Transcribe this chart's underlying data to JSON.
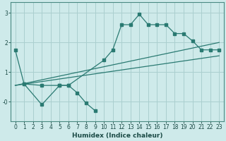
{
  "xlabel": "Humidex (Indice chaleur)",
  "bg_color": "#ceeaea",
  "grid_color": "#aacfcf",
  "line_color": "#2a7a72",
  "xlim": [
    -0.5,
    23.5
  ],
  "ylim": [
    -0.65,
    3.35
  ],
  "xticks": [
    0,
    1,
    2,
    3,
    4,
    5,
    6,
    7,
    8,
    9,
    10,
    11,
    12,
    13,
    14,
    15,
    16,
    17,
    18,
    19,
    20,
    21,
    22,
    23
  ],
  "yticks": [
    0,
    1,
    2,
    3
  ],
  "ytick_labels": [
    "-0",
    "1",
    "2",
    "3"
  ],
  "curve1_x": [
    0,
    1,
    3,
    5,
    6,
    10,
    11,
    12,
    13,
    14,
    15,
    16,
    17,
    18,
    19,
    20,
    21,
    22,
    23
  ],
  "curve1_y": [
    1.75,
    0.6,
    0.55,
    0.55,
    0.55,
    1.4,
    1.75,
    2.6,
    2.6,
    2.95,
    2.6,
    2.6,
    2.6,
    2.3,
    2.3,
    2.05,
    1.75,
    1.75,
    1.75
  ],
  "curve2_x": [
    1,
    3,
    5,
    6,
    7,
    8,
    9
  ],
  "curve2_y": [
    0.6,
    -0.1,
    0.55,
    0.55,
    0.3,
    -0.05,
    -0.3
  ],
  "trend1_x": [
    0,
    23
  ],
  "trend1_y": [
    0.55,
    1.55
  ],
  "trend2_x": [
    0,
    23
  ],
  "trend2_y": [
    0.55,
    2.0
  ]
}
